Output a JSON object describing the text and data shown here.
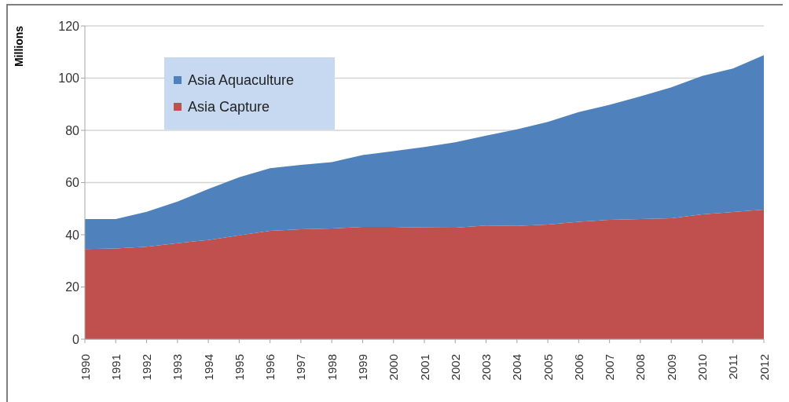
{
  "chart_data": {
    "type": "area",
    "stacked": true,
    "ylabel": "Millions",
    "categories": [
      "1990",
      "1991",
      "1992",
      "1993",
      "1994",
      "1995",
      "1996",
      "1997",
      "1998",
      "1999",
      "2000",
      "2001",
      "2002",
      "2003",
      "2004",
      "2005",
      "2006",
      "2007",
      "2008",
      "2009",
      "2010",
      "2011",
      "2012"
    ],
    "series": [
      {
        "name": "Asia Capture",
        "color": "#c0504d",
        "values": [
          34.5,
          34.7,
          35.4,
          36.8,
          38,
          39.8,
          41.5,
          42.1,
          42.4,
          43,
          43,
          42.8,
          42.7,
          43.5,
          43.4,
          43.9,
          45,
          45.7,
          46,
          46.3,
          47.8,
          48.7,
          49.6
        ]
      },
      {
        "name": "Asia Aquaculture",
        "color": "#4f81bd",
        "values": [
          11.5,
          11.3,
          13.4,
          15.9,
          19.5,
          22.2,
          24,
          24.7,
          25.4,
          27.5,
          29,
          30.8,
          32.7,
          34.5,
          37,
          39.3,
          42,
          44.1,
          47,
          50.2,
          53,
          55,
          59.2
        ]
      }
    ],
    "ylim": [
      0,
      120
    ],
    "yticks": [
      0,
      20,
      40,
      60,
      80,
      100,
      120
    ],
    "grid": "y",
    "legend": "top left"
  }
}
